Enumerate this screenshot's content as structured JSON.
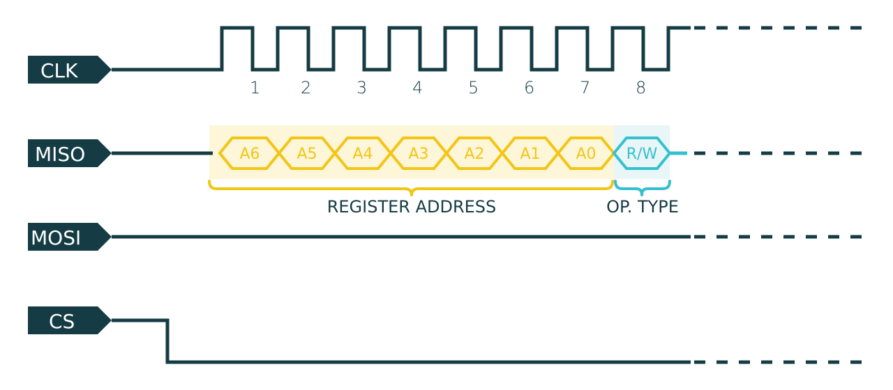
{
  "signals": {
    "clk": "CLK",
    "miso": "MISO",
    "mosi": "MOSI",
    "cs": "CS"
  },
  "clock_numbers": [
    "1",
    "2",
    "3",
    "4",
    "5",
    "6",
    "7",
    "8"
  ],
  "miso_bits": [
    "A6",
    "A5",
    "A4",
    "A3",
    "A2",
    "A1",
    "A0",
    "R/W"
  ],
  "groups": {
    "register_address": "REGISTER ADDRESS",
    "op_type": "OP. TYPE"
  },
  "colors": {
    "dark": "#153c44",
    "address": "#f3c515",
    "address_bg": "#fdf6d8",
    "op": "#35c0cf",
    "op_bg": "#e8f6f7"
  }
}
